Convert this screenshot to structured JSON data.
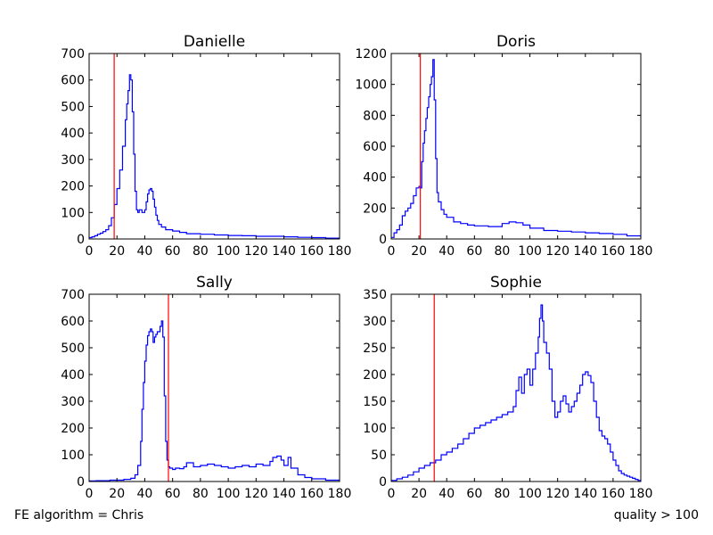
{
  "figure": {
    "footer_left": "FE algorithm = Chris",
    "footer_right": "quality > 100"
  },
  "chart_data": [
    {
      "type": "line",
      "style": "step-histogram",
      "title": "Danielle",
      "xlabel": "",
      "ylabel": "",
      "xlim": [
        0,
        180
      ],
      "ylim": [
        0,
        700
      ],
      "xticks": [
        0,
        20,
        40,
        60,
        80,
        100,
        120,
        140,
        160,
        180
      ],
      "yticks": [
        0,
        100,
        200,
        300,
        400,
        500,
        600,
        700
      ],
      "grid": false,
      "series_color": "#0000ff",
      "vline": {
        "x": 18,
        "color": "#ff0000"
      },
      "series": [
        {
          "x": [
            0,
            2,
            4,
            6,
            8,
            10,
            12,
            14,
            16,
            18,
            20,
            22,
            24,
            26,
            27,
            28,
            29,
            30,
            31,
            32,
            33,
            34,
            35,
            36,
            38,
            40,
            41,
            42,
            43,
            44,
            45,
            46,
            47,
            48,
            49,
            50,
            52,
            55,
            60,
            65,
            70,
            80,
            90,
            100,
            110,
            120,
            130,
            140,
            150,
            160,
            170,
            180
          ],
          "y": [
            5,
            8,
            12,
            18,
            22,
            28,
            35,
            50,
            80,
            130,
            190,
            260,
            350,
            450,
            510,
            560,
            620,
            600,
            480,
            320,
            180,
            110,
            100,
            110,
            100,
            110,
            140,
            170,
            185,
            190,
            180,
            150,
            120,
            90,
            70,
            55,
            45,
            35,
            30,
            25,
            20,
            18,
            15,
            13,
            12,
            10,
            10,
            8,
            6,
            5,
            3,
            2
          ]
        }
      ]
    },
    {
      "type": "line",
      "style": "step-histogram",
      "title": "Doris",
      "xlabel": "",
      "ylabel": "",
      "xlim": [
        0,
        180
      ],
      "ylim": [
        0,
        1200
      ],
      "xticks": [
        0,
        20,
        40,
        60,
        80,
        100,
        120,
        140,
        160,
        180
      ],
      "yticks": [
        0,
        200,
        400,
        600,
        800,
        1000,
        1200
      ],
      "grid": false,
      "series_color": "#0000ff",
      "vline": {
        "x": 21,
        "color": "#ff0000"
      },
      "series": [
        {
          "x": [
            0,
            2,
            4,
            6,
            8,
            10,
            12,
            14,
            16,
            18,
            20,
            21,
            22,
            23,
            24,
            25,
            26,
            27,
            28,
            29,
            30,
            31,
            32,
            33,
            34,
            36,
            38,
            40,
            45,
            50,
            55,
            60,
            70,
            80,
            85,
            90,
            95,
            100,
            110,
            120,
            130,
            140,
            150,
            160,
            170,
            180
          ],
          "y": [
            10,
            40,
            60,
            90,
            150,
            180,
            200,
            230,
            280,
            330,
            340,
            330,
            500,
            620,
            700,
            780,
            850,
            920,
            1000,
            1050,
            1160,
            900,
            520,
            300,
            240,
            190,
            160,
            140,
            110,
            100,
            90,
            85,
            80,
            100,
            110,
            105,
            90,
            70,
            55,
            50,
            45,
            40,
            35,
            30,
            20,
            10
          ]
        }
      ]
    },
    {
      "type": "line",
      "style": "step-histogram",
      "title": "Sally",
      "xlabel": "",
      "ylabel": "",
      "xlim": [
        0,
        180
      ],
      "ylim": [
        0,
        700
      ],
      "xticks": [
        0,
        20,
        40,
        60,
        80,
        100,
        120,
        140,
        160,
        180
      ],
      "yticks": [
        0,
        100,
        200,
        300,
        400,
        500,
        600,
        700
      ],
      "grid": false,
      "series_color": "#0000ff",
      "vline": {
        "x": 57,
        "color": "#ff0000"
      },
      "series": [
        {
          "x": [
            0,
            5,
            10,
            15,
            20,
            25,
            30,
            33,
            35,
            37,
            38,
            39,
            40,
            41,
            42,
            43,
            44,
            45,
            46,
            47,
            48,
            49,
            50,
            51,
            52,
            53,
            54,
            55,
            56,
            57,
            58,
            60,
            62,
            65,
            68,
            70,
            75,
            80,
            85,
            90,
            95,
            100,
            105,
            110,
            115,
            120,
            125,
            130,
            132,
            135,
            138,
            140,
            143,
            145,
            150,
            155,
            160,
            170,
            180
          ],
          "y": [
            2,
            3,
            3,
            5,
            5,
            8,
            12,
            25,
            60,
            150,
            270,
            370,
            450,
            510,
            545,
            560,
            570,
            560,
            520,
            540,
            550,
            560,
            560,
            580,
            600,
            540,
            320,
            150,
            80,
            55,
            50,
            45,
            50,
            48,
            55,
            70,
            55,
            60,
            65,
            60,
            55,
            50,
            55,
            60,
            55,
            65,
            60,
            75,
            90,
            95,
            80,
            60,
            90,
            50,
            25,
            15,
            10,
            5,
            3
          ]
        }
      ]
    },
    {
      "type": "line",
      "style": "step-histogram",
      "title": "Sophie",
      "xlabel": "",
      "ylabel": "",
      "xlim": [
        0,
        180
      ],
      "ylim": [
        0,
        350
      ],
      "xticks": [
        0,
        20,
        40,
        60,
        80,
        100,
        120,
        140,
        160,
        180
      ],
      "yticks": [
        0,
        50,
        100,
        150,
        200,
        250,
        300,
        350
      ],
      "grid": false,
      "series_color": "#0000ff",
      "vline": {
        "x": 31,
        "color": "#ff0000"
      },
      "series": [
        {
          "x": [
            0,
            4,
            8,
            12,
            16,
            20,
            24,
            28,
            32,
            36,
            40,
            44,
            48,
            52,
            56,
            60,
            64,
            68,
            72,
            76,
            80,
            84,
            88,
            90,
            92,
            94,
            96,
            98,
            100,
            102,
            104,
            106,
            107,
            108,
            109,
            110,
            112,
            114,
            116,
            118,
            120,
            122,
            124,
            126,
            128,
            130,
            132,
            134,
            136,
            138,
            140,
            142,
            144,
            146,
            148,
            150,
            152,
            154,
            156,
            158,
            160,
            162,
            164,
            166,
            168,
            170,
            172,
            174,
            176,
            178,
            180
          ],
          "y": [
            2,
            5,
            8,
            12,
            18,
            25,
            30,
            35,
            40,
            50,
            55,
            62,
            70,
            80,
            90,
            100,
            105,
            110,
            115,
            120,
            125,
            130,
            140,
            170,
            195,
            165,
            200,
            210,
            180,
            210,
            240,
            270,
            305,
            330,
            300,
            260,
            240,
            210,
            150,
            120,
            130,
            150,
            160,
            145,
            130,
            140,
            150,
            165,
            180,
            200,
            205,
            198,
            185,
            150,
            120,
            95,
            85,
            80,
            70,
            55,
            40,
            30,
            20,
            15,
            12,
            10,
            8,
            6,
            4,
            2,
            1
          ]
        }
      ]
    }
  ]
}
